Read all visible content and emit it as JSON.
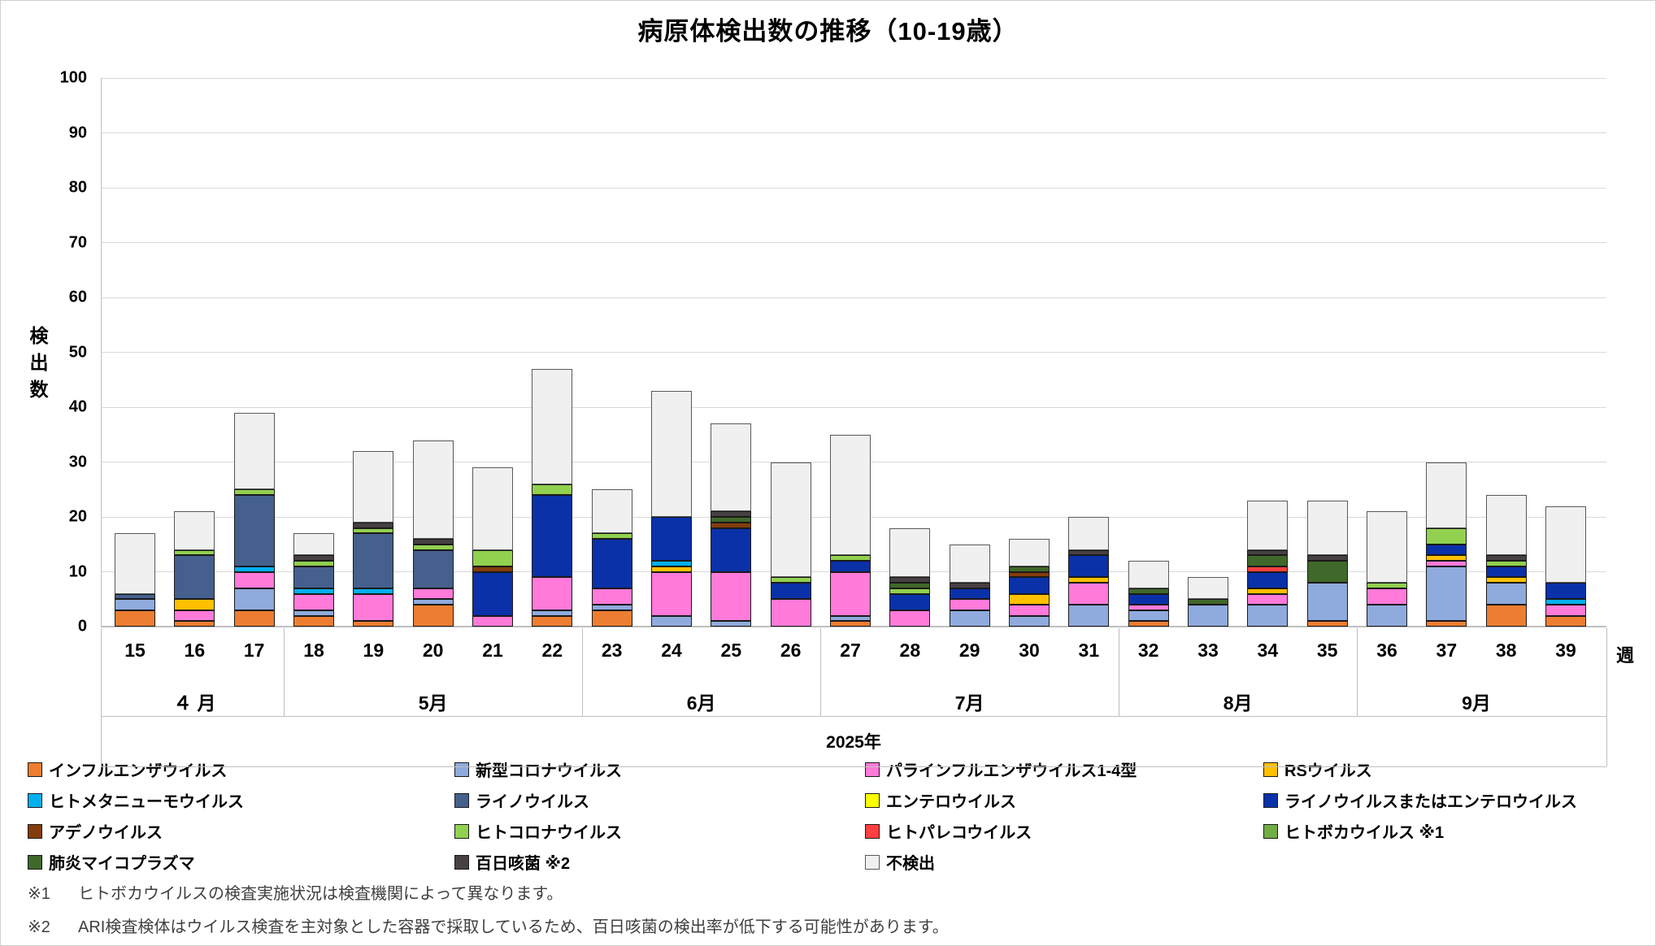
{
  "title": "病原体検出数の推移（10-19歳）",
  "chart_data": {
    "type": "bar",
    "stacked": true,
    "title": "病原体検出数の推移（10-19歳）",
    "ylabel": "検出数",
    "x_unit_label": "週",
    "year_label": "2025年",
    "ylim": [
      0,
      100
    ],
    "ytick_step": 10,
    "grid": true,
    "legend_position": "bottom",
    "weeks": [
      15,
      16,
      17,
      18,
      19,
      20,
      21,
      22,
      23,
      24,
      25,
      26,
      27,
      28,
      29,
      30,
      31,
      32,
      33,
      34,
      35,
      36,
      37,
      38,
      39
    ],
    "months": [
      {
        "label": "４ 月",
        "from": 15,
        "to": 17
      },
      {
        "label": "5月",
        "from": 18,
        "to": 22
      },
      {
        "label": "6月",
        "from": 23,
        "to": 26
      },
      {
        "label": "7月",
        "from": 27,
        "to": 31
      },
      {
        "label": "8月",
        "from": 32,
        "to": 35
      },
      {
        "label": "9月",
        "from": 36,
        "to": 39
      }
    ],
    "series": [
      {
        "id": "influenza",
        "name": "インフルエンザウイルス",
        "color": "#ED7D31",
        "values": [
          3,
          1,
          3,
          2,
          1,
          4,
          0,
          2,
          3,
          0,
          0,
          0,
          1,
          0,
          0,
          0,
          0,
          1,
          0,
          0,
          1,
          0,
          1,
          4,
          2
        ]
      },
      {
        "id": "covid19",
        "name": "新型コロナウイルス",
        "color": "#8FAADC",
        "values": [
          2,
          0,
          4,
          1,
          0,
          1,
          0,
          1,
          1,
          2,
          1,
          0,
          1,
          0,
          3,
          2,
          4,
          2,
          4,
          4,
          7,
          4,
          10,
          4,
          0
        ]
      },
      {
        "id": "parainfluenza",
        "name": "パラインフルエンザウイルス1-4型",
        "color": "#FF7AD9",
        "values": [
          0,
          2,
          3,
          3,
          5,
          2,
          2,
          6,
          3,
          8,
          9,
          5,
          8,
          3,
          2,
          2,
          4,
          1,
          0,
          2,
          0,
          3,
          1,
          0,
          2
        ]
      },
      {
        "id": "rsv",
        "name": "RSウイルス",
        "color": "#FFC000",
        "values": [
          0,
          2,
          0,
          0,
          0,
          0,
          0,
          0,
          0,
          1,
          0,
          0,
          0,
          0,
          0,
          2,
          1,
          0,
          0,
          1,
          0,
          0,
          1,
          1,
          0
        ]
      },
      {
        "id": "hmpv",
        "name": "ヒトメタニューモウイルス",
        "color": "#00B0F0",
        "values": [
          0,
          0,
          1,
          1,
          1,
          0,
          0,
          0,
          0,
          1,
          0,
          0,
          0,
          0,
          0,
          0,
          0,
          0,
          0,
          0,
          0,
          0,
          0,
          0,
          1
        ]
      },
      {
        "id": "rhinovirus",
        "name": "ライノウイルス",
        "color": "#45608D",
        "values": [
          1,
          8,
          13,
          4,
          10,
          7,
          0,
          0,
          0,
          0,
          0,
          0,
          0,
          0,
          0,
          0,
          0,
          0,
          0,
          0,
          0,
          0,
          0,
          0,
          0
        ]
      },
      {
        "id": "enterovirus",
        "name": "エンテロウイルス",
        "color": "#FFFF00",
        "values": [
          0,
          0,
          0,
          0,
          0,
          0,
          0,
          0,
          0,
          0,
          0,
          0,
          0,
          0,
          0,
          0,
          0,
          0,
          0,
          0,
          0,
          0,
          0,
          0,
          0
        ]
      },
      {
        "id": "rhino-or-entero",
        "name": "ライノウイルスまたはエンテロウイルス",
        "color": "#0A31A8",
        "values": [
          0,
          0,
          0,
          0,
          0,
          0,
          8,
          15,
          9,
          8,
          8,
          3,
          2,
          3,
          2,
          3,
          4,
          2,
          0,
          3,
          0,
          0,
          2,
          2,
          3
        ]
      },
      {
        "id": "adenovirus",
        "name": "アデノウイルス",
        "color": "#843C0C",
        "values": [
          0,
          0,
          0,
          0,
          0,
          0,
          1,
          0,
          0,
          0,
          1,
          0,
          0,
          0,
          0,
          1,
          0,
          0,
          0,
          0,
          0,
          0,
          0,
          0,
          0
        ]
      },
      {
        "id": "hcov",
        "name": "ヒトコロナウイルス",
        "color": "#92D050",
        "values": [
          0,
          1,
          1,
          1,
          1,
          1,
          3,
          2,
          1,
          0,
          0,
          1,
          1,
          1,
          0,
          0,
          0,
          0,
          0,
          0,
          0,
          1,
          3,
          1,
          0
        ]
      },
      {
        "id": "parechovirus",
        "name": "ヒトパレコウイルス",
        "color": "#FF4040",
        "values": [
          0,
          0,
          0,
          0,
          0,
          0,
          0,
          0,
          0,
          0,
          0,
          0,
          0,
          0,
          0,
          0,
          0,
          0,
          0,
          1,
          0,
          0,
          0,
          0,
          0
        ]
      },
      {
        "id": "bocavirus",
        "name": "ヒトボカウイルス ※1",
        "color": "#70AD47",
        "values": [
          0,
          0,
          0,
          0,
          0,
          0,
          0,
          0,
          0,
          0,
          0,
          0,
          0,
          0,
          0,
          0,
          0,
          0,
          0,
          0,
          0,
          0,
          0,
          0,
          0
        ]
      },
      {
        "id": "mycoplasma",
        "name": "肺炎マイコプラズマ",
        "color": "#40682A",
        "values": [
          0,
          0,
          0,
          0,
          0,
          0,
          0,
          0,
          0,
          0,
          1,
          0,
          0,
          1,
          0,
          1,
          0,
          1,
          1,
          2,
          4,
          0,
          0,
          0,
          0
        ]
      },
      {
        "id": "pertussis",
        "name": "百日咳菌 ※2",
        "color": "#474043",
        "values": [
          0,
          0,
          0,
          1,
          1,
          1,
          0,
          0,
          0,
          0,
          1,
          0,
          0,
          1,
          1,
          0,
          1,
          0,
          0,
          1,
          1,
          0,
          0,
          1,
          0
        ]
      },
      {
        "id": "not-detected",
        "name": "不検出",
        "color": "#F0F0F0",
        "edge": "#595959",
        "values": [
          11,
          7,
          14,
          4,
          13,
          18,
          15,
          21,
          8,
          23,
          16,
          21,
          22,
          9,
          7,
          5,
          6,
          5,
          4,
          9,
          10,
          13,
          12,
          11,
          14
        ]
      }
    ],
    "totals": [
      17,
      21,
      39,
      17,
      32,
      34,
      29,
      47,
      25,
      43,
      37,
      30,
      35,
      18,
      15,
      16,
      20,
      12,
      9,
      23,
      23,
      21,
      30,
      24,
      22
    ]
  },
  "footnotes": [
    {
      "label": "※1",
      "text": "ヒトボカウイルスの検査実施状況は検査機関によって異なります。"
    },
    {
      "label": "※2",
      "text": "ARI検査検体はウイルス検査を主対象とした容器で採取しているため、百日咳菌の検出率が低下する可能性があります。"
    }
  ]
}
